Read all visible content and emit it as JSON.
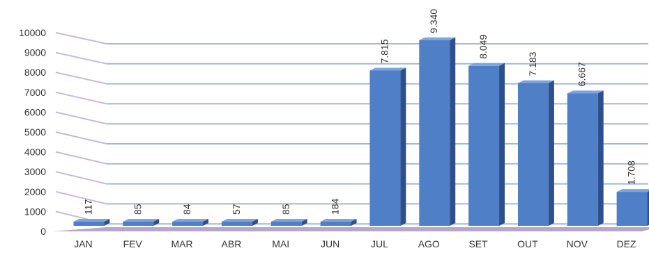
{
  "chart_data": {
    "type": "bar",
    "categories": [
      "JAN",
      "FEV",
      "MAR",
      "ABR",
      "MAI",
      "JUN",
      "JUL",
      "AGO",
      "SET",
      "OUT",
      "NOV",
      "DEZ"
    ],
    "values": [
      117,
      85,
      84,
      57,
      85,
      184,
      7815,
      9340,
      8049,
      7183,
      6667,
      1708
    ],
    "data_labels": [
      "117",
      "85",
      "84",
      "57",
      "85",
      "184",
      "7.815",
      "9.340",
      "8.049",
      "7.183",
      "6.667",
      "1.708"
    ],
    "y_ticks": [
      "0",
      "1000",
      "2000",
      "3000",
      "4000",
      "5000",
      "6000",
      "7000",
      "8000",
      "9000",
      "10000"
    ],
    "ylim": [
      0,
      10000
    ],
    "title": "",
    "xlabel": "",
    "ylabel": "",
    "grid": true,
    "legend": "none",
    "three_d": true,
    "colors": {
      "bar_front": "#4f7fc6",
      "bar_top": "#7ea5dc",
      "bar_side": "#2d4f8c",
      "gridline": "#9fb8dc",
      "floor": "#b7a6c9",
      "wall_line": "#c9b8d9"
    }
  }
}
